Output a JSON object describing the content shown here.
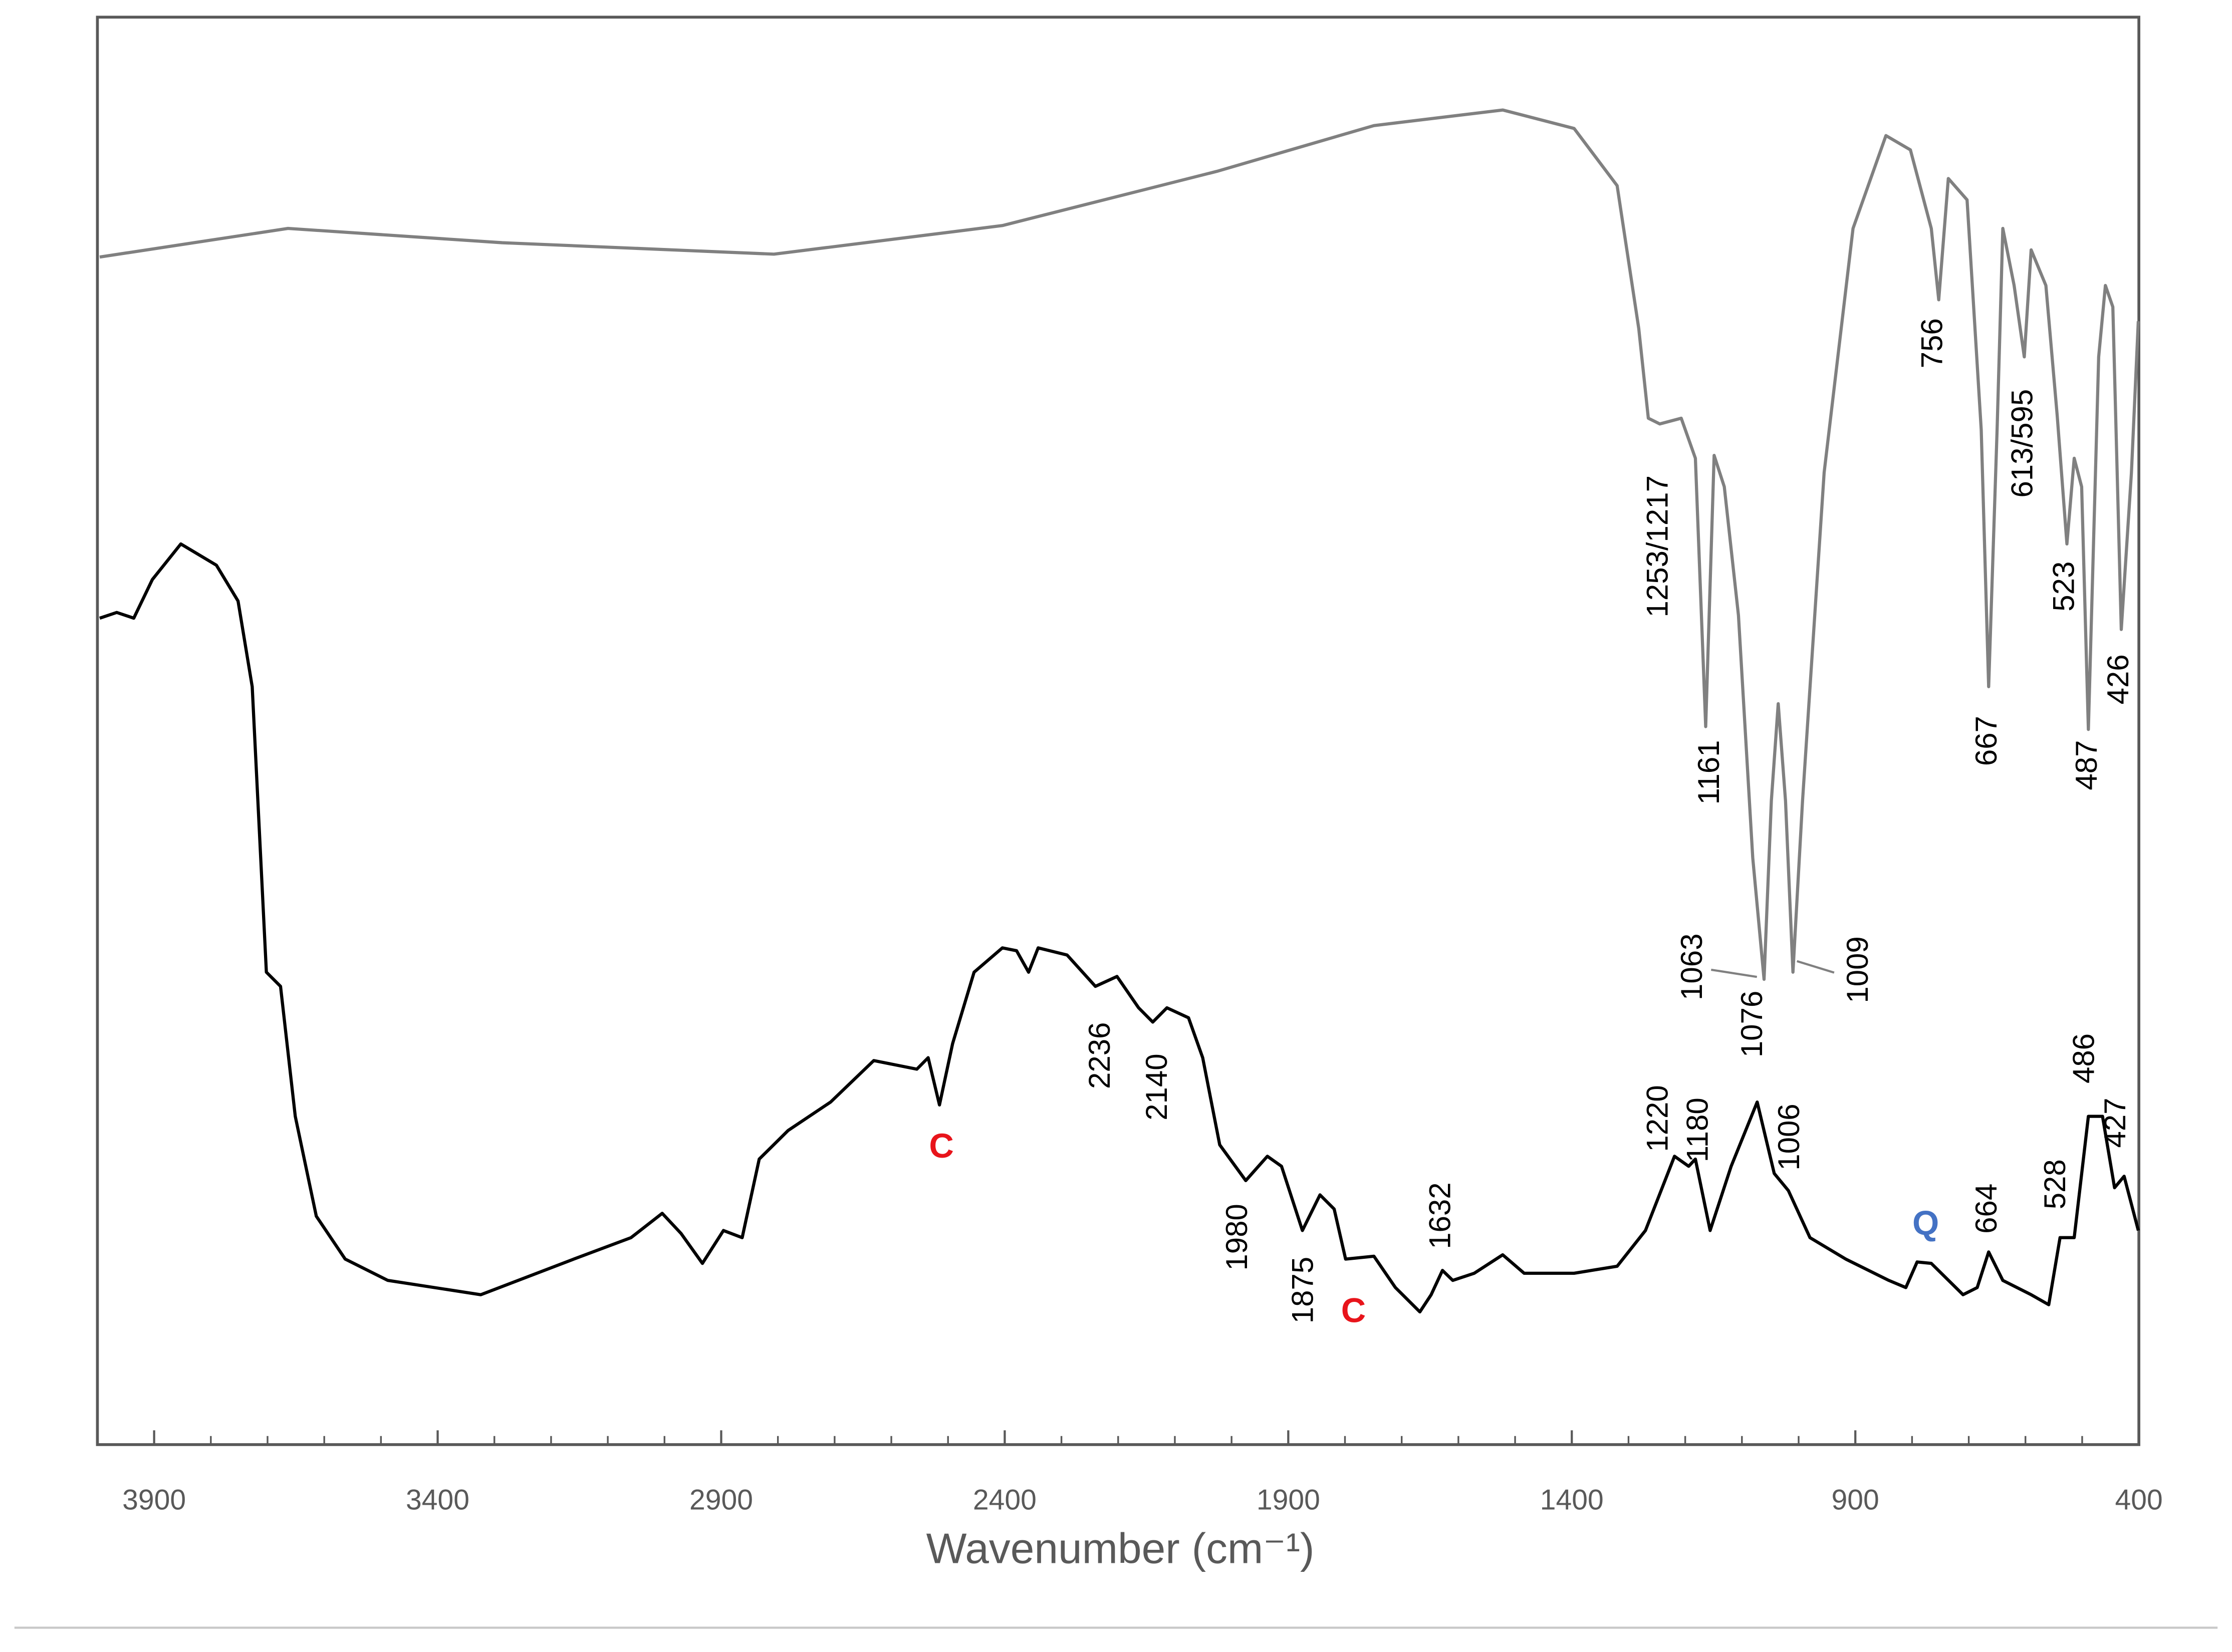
{
  "chart_data": {
    "type": "line",
    "xlabel": "Wavenumber (cm⁻¹)",
    "xlim": [
      4000,
      400
    ],
    "ylim": [
      0,
      100
    ],
    "xticks": [
      3900,
      3400,
      2900,
      2400,
      1900,
      1400,
      900,
      400
    ],
    "minor_xticks": [
      3800,
      3700,
      3600,
      3500,
      3300,
      3200,
      3100,
      3000,
      2800,
      2700,
      2600,
      2500,
      2300,
      2200,
      2100,
      2000,
      1800,
      1700,
      1600,
      1500,
      1300,
      1200,
      1100,
      1000,
      800,
      700,
      600,
      500
    ],
    "series": [
      {
        "color": "#808080",
        "x": [
          3996,
          3664,
          3286,
          2807,
          2404,
          2026,
          1749,
          1522,
          1396,
          1320,
          1282,
          1265,
          1245,
          1207,
          1182,
          1164,
          1149,
          1131,
          1106,
          1081,
          1061,
          1048,
          1036,
          1023,
          1010,
          993,
          955,
          904,
          846,
          803,
          766,
          753,
          736,
          703,
          678,
          665,
          650,
          640,
          620,
          602,
          590,
          564,
          544,
          527,
          514,
          501,
          489,
          471,
          459,
          446,
          431,
          413,
          401
        ],
        "values": [
          83.2,
          85.2,
          84.2,
          83.4,
          85.4,
          89.2,
          92.4,
          93.5,
          92.2,
          88.2,
          78.2,
          71.9,
          71.5,
          71.9,
          69.1,
          50.3,
          69.3,
          67.1,
          58.1,
          41.1,
          32.6,
          45.1,
          51.9,
          45.1,
          33.1,
          45.1,
          68.1,
          85.2,
          91.7,
          90.7,
          85.2,
          80.2,
          88.7,
          87.2,
          71.1,
          53.1,
          71.1,
          85.2,
          81.2,
          76.2,
          83.7,
          81.2,
          72.1,
          63.1,
          69.1,
          67.1,
          50.1,
          76.2,
          81.2,
          79.7,
          57.1,
          68.1,
          78.7
        ]
      },
      {
        "color": "#000000",
        "x": [
          3996,
          3966,
          3936,
          3903,
          3853,
          3790,
          3752,
          3727,
          3702,
          3677,
          3651,
          3614,
          3563,
          3488,
          3324,
          3160,
          3059,
          3004,
          2971,
          2933,
          2896,
          2863,
          2833,
          2782,
          2707,
          2631,
          2555,
          2535,
          2515,
          2492,
          2454,
          2404,
          2379,
          2358,
          2341,
          2290,
          2240,
          2202,
          2164,
          2139,
          2114,
          2076,
          2051,
          2021,
          1975,
          1937,
          1912,
          1875,
          1844,
          1819,
          1799,
          1749,
          1711,
          1668,
          1648,
          1628,
          1610,
          1572,
          1522,
          1484,
          1396,
          1320,
          1270,
          1219,
          1194,
          1182,
          1156,
          1119,
          1073,
          1043,
          1018,
          980,
          917,
          841,
          811,
          791,
          766,
          710,
          685,
          665,
          640,
          590,
          559,
          539,
          514,
          489,
          464,
          443,
          426,
          401
        ],
        "values": [
          57.9,
          58.3,
          57.9,
          60.6,
          63.1,
          61.6,
          59.1,
          53.1,
          33.1,
          32.1,
          23.0,
          16.0,
          13.0,
          11.5,
          10.5,
          13.0,
          14.5,
          16.2,
          14.8,
          12.7,
          15.0,
          14.5,
          20.0,
          22.0,
          24.0,
          26.9,
          26.3,
          27.1,
          23.8,
          28.1,
          33.1,
          34.8,
          34.6,
          33.1,
          34.8,
          34.3,
          32.1,
          32.8,
          30.6,
          29.6,
          30.6,
          29.9,
          27.1,
          21.0,
          18.5,
          20.2,
          19.5,
          15.0,
          17.5,
          16.5,
          13.0,
          13.2,
          11.0,
          9.3,
          10.5,
          12.2,
          11.5,
          12.0,
          13.3,
          12.0,
          12.0,
          12.5,
          15.0,
          20.2,
          19.5,
          20.0,
          15.0,
          19.5,
          24.0,
          19.0,
          17.8,
          14.5,
          13.0,
          11.5,
          11.0,
          12.8,
          12.7,
          10.5,
          11.0,
          13.5,
          11.5,
          10.5,
          9.8,
          14.5,
          14.5,
          23.0,
          23.0,
          18.0,
          18.8,
          15.0
        ]
      }
    ],
    "annotations": [
      {
        "text": "756"
      },
      {
        "text": "613/595"
      },
      {
        "text": "523"
      },
      {
        "text": "426"
      },
      {
        "text": "487"
      },
      {
        "text": "667"
      },
      {
        "text": "1253/1217"
      },
      {
        "text": "1161"
      },
      {
        "text": "1063"
      },
      {
        "text": "1076"
      },
      {
        "text": "1009"
      },
      {
        "text": "2236"
      },
      {
        "text": "2140"
      },
      {
        "text": "1980"
      },
      {
        "text": "1875"
      },
      {
        "text": "1632"
      },
      {
        "text": "1220"
      },
      {
        "text": "1180"
      },
      {
        "text": "1006"
      },
      {
        "text": "664"
      },
      {
        "text": "528"
      },
      {
        "text": "486"
      },
      {
        "text": "427"
      },
      {
        "text": "C",
        "color": "#e8141b"
      },
      {
        "text": "C",
        "color": "#e8141b"
      },
      {
        "text": "Q",
        "color": "#4472c4"
      }
    ]
  }
}
